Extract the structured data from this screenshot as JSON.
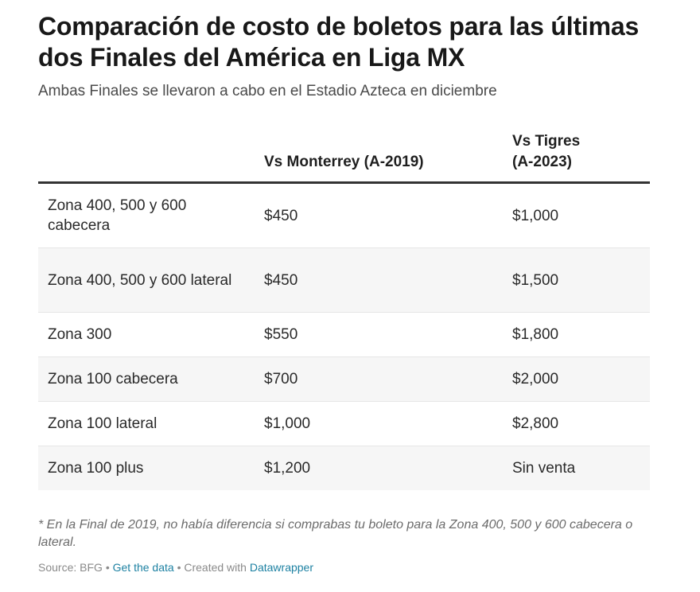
{
  "chart_data": {
    "type": "table",
    "title": "Comparación de costo de boletos para las últimas dos Finales del América en Liga MX",
    "subtitle": "Ambas Finales se llevaron a cabo en el Estadio Azteca en diciembre",
    "columns": [
      "",
      "Vs Monterrey (A-2019)",
      "Vs Tigres (A-2023)"
    ],
    "rows": [
      [
        "Zona 400, 500 y 600 cabecera",
        "$450",
        "$1,000"
      ],
      [
        "Zona 400, 500 y 600 lateral",
        "$450",
        "$1,500"
      ],
      [
        "Zona 300",
        "$550",
        "$1,800"
      ],
      [
        "Zona 100 cabecera",
        "$700",
        "$2,000"
      ],
      [
        "Zona 100 lateral",
        "$1,000",
        "$2,800"
      ],
      [
        "Zona 100 plus",
        "$1,200",
        "Sin venta"
      ]
    ],
    "note": "* En la Final de 2019, no había diferencia si comprabas tu boleto para la Zona 400, 500 y 600 cabecera o lateral."
  },
  "footer": {
    "source": "Source: BFG",
    "separator": "•",
    "get_data": "Get the data",
    "created_with": "Created with",
    "tool": "Datawrapper"
  },
  "colors": {
    "link": "#1d81a2",
    "header_rule": "#333333",
    "stripe": "#f6f6f6"
  }
}
